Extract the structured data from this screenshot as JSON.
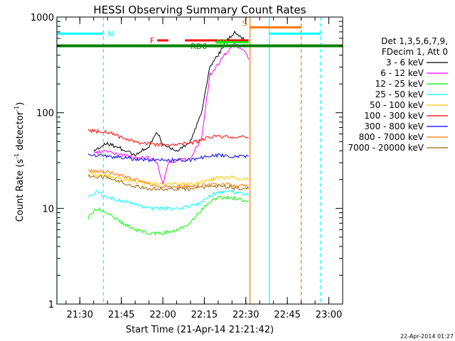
{
  "chart_data": {
    "type": "line",
    "title": "HESSI Observing Summary Count Rates",
    "xlabel": "Start Time (21-Apr-14 21:21:42)",
    "ylabel_main": "Count Rate (s",
    "ylabel_sup1": "-1",
    "ylabel_mid": " detector",
    "ylabel_sup2": "-1",
    "ylabel_end": ")",
    "y_scale": "log",
    "ylim": [
      1,
      1000
    ],
    "xlim": [
      "21:21:42",
      "23:05:00"
    ],
    "x_ticks": [
      "21:30",
      "21:45",
      "22:00",
      "22:15",
      "22:30",
      "22:45",
      "23:00"
    ],
    "y_ticks": [
      {
        "value": 1,
        "label": "1"
      },
      {
        "value": 10,
        "label": "10"
      },
      {
        "value": 100,
        "label": "100"
      },
      {
        "value": 1000,
        "label": "1000"
      }
    ],
    "footer_date": "22-Apr-2014 01:27",
    "legend_placement": "right",
    "legend_header": [
      "Det 1,3,5,6,7,9,",
      "FDecim 1, Att 0"
    ],
    "series": [
      {
        "name": "3 - 6 keV",
        "color": "#000000",
        "points": [
          [
            "21:35",
            40
          ],
          [
            "21:40",
            48
          ],
          [
            "21:45",
            42
          ],
          [
            "21:50",
            36
          ],
          [
            "21:55",
            45
          ],
          [
            "21:58",
            62
          ],
          [
            "22:00",
            48
          ],
          [
            "22:05",
            40
          ],
          [
            "22:10",
            50
          ],
          [
            "22:14",
            100
          ],
          [
            "22:17",
            300
          ],
          [
            "22:20",
            400
          ],
          [
            "22:23",
            560
          ],
          [
            "22:26",
            700
          ],
          [
            "22:29",
            600
          ],
          [
            "22:31",
            540
          ]
        ]
      },
      {
        "name": "6 - 12 keV",
        "color": "#ff00ff",
        "points": [
          [
            "21:35",
            38
          ],
          [
            "21:40",
            40
          ],
          [
            "21:45",
            36
          ],
          [
            "21:50",
            34
          ],
          [
            "21:55",
            34
          ],
          [
            "21:58",
            30
          ],
          [
            "22:00",
            18
          ],
          [
            "22:02",
            30
          ],
          [
            "22:05",
            32
          ],
          [
            "22:10",
            33
          ],
          [
            "22:14",
            55
          ],
          [
            "22:17",
            250
          ],
          [
            "22:20",
            320
          ],
          [
            "22:23",
            430
          ],
          [
            "22:26",
            520
          ],
          [
            "22:29",
            460
          ],
          [
            "22:31",
            360
          ]
        ]
      },
      {
        "name": "12 - 25 keV",
        "color": "#00ff00",
        "points": [
          [
            "21:33",
            8
          ],
          [
            "21:36",
            10
          ],
          [
            "21:40",
            9
          ],
          [
            "21:45",
            7
          ],
          [
            "21:50",
            6
          ],
          [
            "21:55",
            5.5
          ],
          [
            "22:00",
            5.5
          ],
          [
            "22:05",
            6
          ],
          [
            "22:10",
            7
          ],
          [
            "22:13",
            9
          ],
          [
            "22:16",
            11
          ],
          [
            "22:20",
            13
          ],
          [
            "22:25",
            13
          ],
          [
            "22:29",
            12
          ],
          [
            "22:31",
            12
          ]
        ]
      },
      {
        "name": "25 - 50 keV",
        "color": "#00ffff",
        "points": [
          [
            "21:33",
            13
          ],
          [
            "21:36",
            15
          ],
          [
            "21:40",
            13
          ],
          [
            "21:45",
            12
          ],
          [
            "21:50",
            11
          ],
          [
            "21:55",
            10
          ],
          [
            "22:00",
            10
          ],
          [
            "22:05",
            10
          ],
          [
            "22:10",
            10.5
          ],
          [
            "22:13",
            11
          ],
          [
            "22:16",
            13
          ],
          [
            "22:20",
            15
          ],
          [
            "22:25",
            15
          ],
          [
            "22:29",
            14
          ],
          [
            "22:31",
            14
          ]
        ]
      },
      {
        "name": "50 - 100 keV",
        "color": "#ffc800",
        "points": [
          [
            "21:33",
            23
          ],
          [
            "21:40",
            22
          ],
          [
            "21:45",
            20
          ],
          [
            "21:50",
            19
          ],
          [
            "21:55",
            18
          ],
          [
            "22:00",
            18
          ],
          [
            "22:05",
            18
          ],
          [
            "22:10",
            18
          ],
          [
            "22:15",
            19
          ],
          [
            "22:20",
            21
          ],
          [
            "22:25",
            21
          ],
          [
            "22:31",
            20
          ]
        ]
      },
      {
        "name": "100 - 300 keV",
        "color": "#ff0000",
        "points": [
          [
            "21:33",
            65
          ],
          [
            "21:40",
            63
          ],
          [
            "21:45",
            55
          ],
          [
            "21:50",
            50
          ],
          [
            "21:55",
            47
          ],
          [
            "22:00",
            46
          ],
          [
            "22:05",
            47
          ],
          [
            "22:10",
            48
          ],
          [
            "22:14",
            52
          ],
          [
            "22:16",
            55
          ],
          [
            "22:20",
            57
          ],
          [
            "22:25",
            56
          ],
          [
            "22:31",
            55
          ]
        ]
      },
      {
        "name": "300 - 800 keV",
        "color": "#0000ff",
        "points": [
          [
            "21:33",
            36
          ],
          [
            "21:40",
            35
          ],
          [
            "21:45",
            34
          ],
          [
            "21:50",
            33
          ],
          [
            "21:55",
            32
          ],
          [
            "22:00",
            32
          ],
          [
            "22:05",
            32
          ],
          [
            "22:10",
            32
          ],
          [
            "22:14",
            34
          ],
          [
            "22:16",
            35
          ],
          [
            "22:20",
            36
          ],
          [
            "22:25",
            35
          ],
          [
            "22:31",
            35
          ]
        ]
      },
      {
        "name": "800 - 7000 keV",
        "color": "#ff7800",
        "points": [
          [
            "21:33",
            25
          ],
          [
            "21:40",
            24
          ],
          [
            "21:45",
            22
          ],
          [
            "21:50",
            20
          ],
          [
            "21:55",
            18
          ],
          [
            "22:00",
            17
          ],
          [
            "22:05",
            17
          ],
          [
            "22:10",
            17
          ],
          [
            "22:15",
            17.5
          ],
          [
            "22:20",
            18
          ],
          [
            "22:25",
            17.5
          ],
          [
            "22:31",
            17
          ]
        ]
      },
      {
        "name": "7000 - 20000 keV",
        "color": "#a06400",
        "points": [
          [
            "21:33",
            22
          ],
          [
            "21:40",
            21
          ],
          [
            "21:45",
            19
          ],
          [
            "21:50",
            17
          ],
          [
            "21:55",
            16
          ],
          [
            "22:00",
            16
          ],
          [
            "22:05",
            16
          ],
          [
            "22:10",
            16
          ],
          [
            "22:15",
            16.5
          ],
          [
            "22:20",
            17
          ],
          [
            "22:25",
            16.5
          ],
          [
            "22:31",
            16
          ]
        ]
      }
    ],
    "vertical_lines": [
      {
        "time": "21:21:42",
        "color": "#00ffff",
        "style": "solid"
      },
      {
        "time": "21:38:30",
        "color": "#00ffff",
        "style": "dashed"
      },
      {
        "time": "22:31:30",
        "color": "#ff7800",
        "style": "solid"
      },
      {
        "time": "22:38:30",
        "color": "#00ffff",
        "style": "solid"
      },
      {
        "time": "22:50:00",
        "color": "#ff7800",
        "style": "dashed"
      },
      {
        "time": "22:57:00",
        "color": "#00ffff",
        "style": "dashed"
      }
    ],
    "flag_bars": [
      {
        "label": "N",
        "color": "#00ffff",
        "t0": "21:21:42",
        "t1": "21:38:30",
        "level": 670,
        "label_side": "right"
      },
      {
        "label": "",
        "color": "#00ffff",
        "t0": "22:38:30",
        "t1": "22:57:00",
        "level": 670,
        "label_side": "none"
      },
      {
        "label": "S",
        "color": "#ff7800",
        "t0": "22:31:30",
        "t1": "22:50:00",
        "level": 780,
        "label_side": "left"
      },
      {
        "label": "F",
        "color": "#ff0000",
        "t0": "21:58:00",
        "t1": "22:02:00",
        "level": 570,
        "label_side": "left"
      },
      {
        "label": "",
        "color": "#ff0000",
        "t0": "22:08:00",
        "t1": "22:31:00",
        "level": 570,
        "label_side": "none"
      },
      {
        "label": "RD",
        "color": "#00ff00",
        "t0": "22:19:00",
        "t1": "22:31:00",
        "level": 545,
        "label_side": "inside"
      },
      {
        "label": "RD6",
        "color": "#008000",
        "t0": "22:17:00",
        "t1": "22:22:00",
        "level": 495,
        "label_side": "left"
      }
    ],
    "attenuator_line": {
      "color": "#008000",
      "level": 500
    }
  }
}
